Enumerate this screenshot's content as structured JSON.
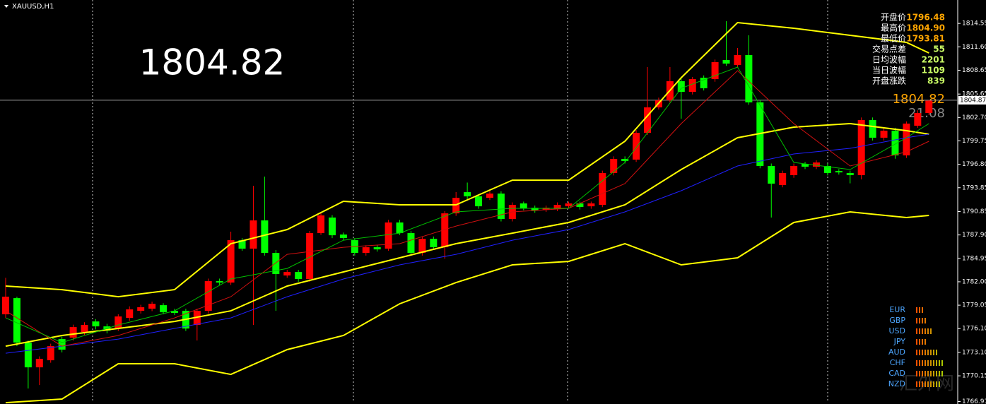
{
  "chart_data": {
    "type": "candlestick",
    "title": "XAUUSD,H1",
    "big_price": "1804.82",
    "bid_label": "1804.82",
    "countdown": "21:08",
    "current_price": {
      "value": 1804.87,
      "label": "1804.87"
    },
    "up_color": "#ff0000",
    "down_color": "#00ff00",
    "ylim": [
      1766.6,
      1817.5
    ],
    "yticks": [
      1814.55,
      {
        "value": 1811.6,
        "label": "1811.60"
      },
      1808.65,
      1805.65,
      {
        "value": 1802.7,
        "label": "1802.70"
      },
      1799.75,
      {
        "value": 1796.8,
        "label": "1796.80"
      },
      1793.85,
      1790.85,
      {
        "value": 1787.9,
        "label": "1787.90"
      },
      1784.95,
      {
        "value": 1782.0,
        "label": "1782.00"
      },
      1779.05,
      {
        "value": 1776.1,
        "label": "1776.10"
      },
      {
        "value": 1773.1,
        "label": "1773.10"
      },
      1770.15,
      1766.91
    ],
    "open": [
      1777.9,
      1779.94,
      1774.34,
      1771.22,
      1772.11,
      1774.78,
      1774.96,
      1775.67,
      1777.0,
      1776.38,
      1776.11,
      1777.45,
      1778.34,
      1778.61,
      1779.05,
      1778.34,
      1778.34,
      1776.56,
      1778.34,
      1782.08,
      1781.9,
      1787.24,
      1786.17,
      1789.73,
      1785.64,
      1782.79,
      1783.23,
      1782.35,
      1788.13,
      1790.09,
      1787.95,
      1787.24,
      1785.64,
      1786.35,
      1786.17,
      1789.47,
      1788.13,
      1785.64,
      1787.42,
      1786.35,
      1790.62,
      1793.29,
      1792.76,
      1792.58,
      1793.11,
      1789.91,
      1791.87,
      1791.33,
      1791.07,
      1791.16,
      1791.51,
      1791.87,
      1791.51,
      1791.69,
      1795.7,
      1797.48,
      1797.39,
      1800.77,
      1803.97,
      1804.86,
      1807.27,
      1805.93,
      1807.71,
      1807.53,
      1809.94,
      1809.31,
      1810.56,
      1804.6,
      1796.59,
      1794.18,
      1795.43,
      1796.85,
      1796.5,
      1796.59,
      1795.96,
      1795.7,
      1795.43,
      1802.37,
      1800.15,
      1801.04,
      1797.92,
      1801.66,
      1803.26
    ],
    "high": [
      1782.5,
      1780.12,
      1774.6,
      1772.6,
      1774.2,
      1775.1,
      1776.6,
      1776.9,
      1777.3,
      1776.7,
      1777.9,
      1778.9,
      1779.1,
      1779.5,
      1779.3,
      1778.6,
      1778.6,
      1778.6,
      1782.4,
      1782.4,
      1788.31,
      1787.5,
      1794.09,
      1795.25,
      1786.0,
      1783.5,
      1783.5,
      1788.4,
      1790.7,
      1790.4,
      1788.2,
      1787.5,
      1786.6,
      1786.6,
      1789.8,
      1789.8,
      1788.4,
      1787.7,
      1787.7,
      1790.9,
      1793.3,
      1794.5,
      1793.0,
      1793.4,
      1793.4,
      1792.0,
      1792.1,
      1791.6,
      1791.6,
      1792.0,
      1792.1,
      1792.1,
      1792.1,
      1796.0,
      1797.8,
      1797.8,
      1801.1,
      1809.05,
      1805.2,
      1809.05,
      1807.6,
      1807.8,
      1808.0,
      1810.0,
      1814.83,
      1811.45,
      1813.05,
      1804.9,
      1796.9,
      1796.0,
      1796.9,
      1797.1,
      1797.3,
      1796.9,
      1796.2,
      1796.0,
      1802.7,
      1802.7,
      1801.4,
      1801.4,
      1802.2,
      1803.6,
      1804.9
    ],
    "low": [
      1777.45,
      1773.89,
      1768.55,
      1768.99,
      1771.8,
      1773.1,
      1774.6,
      1775.3,
      1776.0,
      1775.5,
      1775.8,
      1777.1,
      1778.0,
      1778.3,
      1777.9,
      1777.8,
      1775.8,
      1774.6,
      1778.0,
      1781.6,
      1781.6,
      1785.9,
      1776.56,
      1785.3,
      1778.34,
      1782.5,
      1782.0,
      1782.0,
      1787.9,
      1787.5,
      1787.2,
      1785.3,
      1785.3,
      1785.8,
      1785.9,
      1787.9,
      1785.3,
      1785.3,
      1786.0,
      1784.9,
      1790.3,
      1792.4,
      1791.2,
      1792.3,
      1789.6,
      1789.6,
      1791.0,
      1790.7,
      1790.8,
      1790.9,
      1791.2,
      1791.1,
      1791.2,
      1791.4,
      1795.4,
      1796.9,
      1797.1,
      1800.5,
      1803.7,
      1804.6,
      1802.55,
      1805.6,
      1806.1,
      1807.2,
      1809.2,
      1809.0,
      1804.3,
      1796.3,
      1790.09,
      1793.9,
      1795.1,
      1796.2,
      1796.2,
      1795.4,
      1795.5,
      1794.4,
      1794.9,
      1799.8,
      1799.8,
      1797.5,
      1797.6,
      1801.4,
      1803.0
    ],
    "close": [
      1780.12,
      1774.34,
      1771.22,
      1772.29,
      1773.89,
      1773.45,
      1776.29,
      1776.56,
      1776.38,
      1775.85,
      1777.63,
      1778.52,
      1778.79,
      1779.23,
      1778.16,
      1778.07,
      1776.11,
      1778.34,
      1782.08,
      1781.9,
      1787.24,
      1786.17,
      1789.73,
      1785.64,
      1782.97,
      1783.23,
      1782.35,
      1788.13,
      1790.36,
      1787.86,
      1787.51,
      1785.64,
      1786.35,
      1786.08,
      1789.47,
      1788.13,
      1785.64,
      1787.42,
      1786.35,
      1790.62,
      1792.58,
      1792.76,
      1791.51,
      1793.11,
      1789.91,
      1791.69,
      1791.25,
      1790.98,
      1791.33,
      1791.69,
      1791.87,
      1791.42,
      1791.87,
      1795.7,
      1797.48,
      1797.21,
      1800.77,
      1803.97,
      1804.86,
      1807.27,
      1805.93,
      1807.53,
      1806.38,
      1809.67,
      1809.49,
      1810.56,
      1804.6,
      1796.59,
      1794.36,
      1795.7,
      1796.59,
      1796.5,
      1797.03,
      1795.7,
      1795.78,
      1795.43,
      1802.37,
      1800.15,
      1801.04,
      1797.92,
      1801.93,
      1803.26,
      1804.82
    ],
    "overlays": [
      {
        "color": "#ffff00",
        "width": 2,
        "x": [
          0,
          5,
          10,
          15,
          20,
          25,
          30,
          35,
          40,
          45,
          50,
          55,
          60,
          65,
          70,
          75,
          80,
          82
        ],
        "values": [
          1781.46,
          1781.01,
          1780.12,
          1781.01,
          1786.8,
          1788.58,
          1792.14,
          1791.69,
          1791.69,
          1794.8,
          1794.8,
          1799.7,
          1807.71,
          1814.65,
          1813.94,
          1813.05,
          1812.16,
          1810.83
        ]
      },
      {
        "color": "#ffff00",
        "width": 2,
        "x": [
          0,
          5,
          10,
          15,
          20,
          25,
          30,
          35,
          40,
          45,
          50,
          55,
          60,
          65,
          70,
          75,
          80,
          82
        ],
        "values": [
          1773.89,
          1775.23,
          1776.12,
          1777.0,
          1778.34,
          1781.46,
          1783.24,
          1785.02,
          1786.8,
          1788.13,
          1789.47,
          1791.69,
          1796.14,
          1800.15,
          1801.48,
          1801.93,
          1801.04,
          1800.59
        ]
      },
      {
        "color": "#ffff00",
        "width": 2,
        "x": [
          0,
          5,
          10,
          15,
          20,
          25,
          30,
          35,
          40,
          45,
          50,
          55,
          60,
          65,
          70,
          75,
          80,
          82
        ],
        "values": [
          1766.77,
          1767.22,
          1771.67,
          1771.67,
          1770.33,
          1773.45,
          1775.23,
          1779.23,
          1781.9,
          1784.13,
          1784.57,
          1786.8,
          1784.13,
          1785.02,
          1789.47,
          1790.8,
          1790.09,
          1790.36
        ]
      },
      {
        "color": "#2020ff",
        "width": 1,
        "x": [
          0,
          5,
          10,
          15,
          20,
          25,
          30,
          35,
          40,
          45,
          50,
          55,
          60,
          65,
          70,
          75,
          80,
          82
        ],
        "values": [
          1773.0,
          1773.89,
          1774.78,
          1776.12,
          1777.45,
          1780.12,
          1782.35,
          1784.13,
          1785.46,
          1787.24,
          1788.58,
          1790.8,
          1793.47,
          1796.59,
          1798.1,
          1798.81,
          1800.15,
          1800.59
        ]
      },
      {
        "color": "#d01010",
        "width": 1,
        "x": [
          0,
          5,
          10,
          15,
          20,
          25,
          30,
          35,
          40,
          45,
          50,
          55,
          60,
          65,
          70,
          75,
          80,
          82
        ],
        "values": [
          1778.34,
          1773.89,
          1775.23,
          1777.45,
          1780.12,
          1785.46,
          1786.35,
          1786.8,
          1789.02,
          1790.8,
          1791.25,
          1794.36,
          1801.93,
          1808.6,
          1801.93,
          1796.59,
          1798.37,
          1799.7
        ]
      },
      {
        "color": "#00c000",
        "width": 1,
        "x": [
          0,
          5,
          10,
          15,
          20,
          25,
          30,
          35,
          40,
          45,
          50,
          55,
          60,
          65,
          70,
          75,
          80,
          82
        ],
        "values": [
          1777.45,
          1774.34,
          1776.56,
          1778.34,
          1782.35,
          1783.68,
          1787.24,
          1788.13,
          1790.8,
          1791.25,
          1791.25,
          1797.03,
          1806.38,
          1809.05,
          1797.03,
          1796.14,
          1800.15,
          1801.93
        ]
      }
    ],
    "stats": [
      {
        "label": "开盘价",
        "value": "1796.48",
        "color": "#ffa500"
      },
      {
        "label": "最高价",
        "value": "1804.90",
        "color": "#ffa500"
      },
      {
        "label": "最低价",
        "value": "1793.81",
        "color": "#ffa500"
      },
      {
        "label": "交易点差",
        "value": "55",
        "color": "#ccff66"
      },
      {
        "label": "日均波幅",
        "value": "2201",
        "color": "#ccff66"
      },
      {
        "label": "当日波幅",
        "value": "1109",
        "color": "#ccff66"
      },
      {
        "label": "开盘涨跌",
        "value": "839",
        "color": "#ccff66"
      }
    ],
    "currency_strength": {
      "names": [
        "EUR",
        "GBP",
        "USD",
        "JPY",
        "AUD",
        "CHF",
        "CAD",
        "NZD"
      ],
      "values": [
        3,
        4,
        6,
        4,
        8,
        10,
        10,
        9
      ]
    },
    "watermark": "汇外网"
  }
}
